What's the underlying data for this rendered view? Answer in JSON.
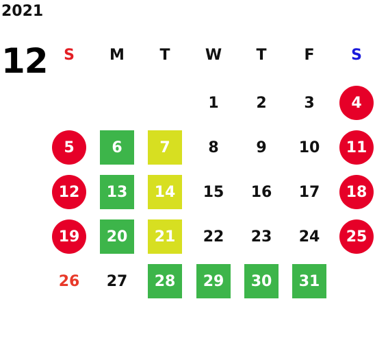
{
  "header": {
    "year": "2021",
    "month": "12"
  },
  "colors": {
    "sunday": "#e31e24",
    "saturday": "#1a1adb",
    "holiday_circle": "#e60028",
    "green_box": "#3db54a",
    "lime_box": "#d7df21"
  },
  "weekdays": [
    {
      "label": "S",
      "color": "#e31e24"
    },
    {
      "label": "M",
      "color": "#111111"
    },
    {
      "label": "T",
      "color": "#111111"
    },
    {
      "label": "W",
      "color": "#111111"
    },
    {
      "label": "T",
      "color": "#111111"
    },
    {
      "label": "F",
      "color": "#111111"
    },
    {
      "label": "S",
      "color": "#1a1adb"
    }
  ],
  "weeks": [
    [
      null,
      null,
      null,
      {
        "day": "1",
        "style": "plain"
      },
      {
        "day": "2",
        "style": "plain"
      },
      {
        "day": "3",
        "style": "plain"
      },
      {
        "day": "4",
        "style": "circle"
      }
    ],
    [
      {
        "day": "5",
        "style": "circle"
      },
      {
        "day": "6",
        "style": "green"
      },
      {
        "day": "7",
        "style": "lime"
      },
      {
        "day": "8",
        "style": "plain"
      },
      {
        "day": "9",
        "style": "plain"
      },
      {
        "day": "10",
        "style": "plain"
      },
      {
        "day": "11",
        "style": "circle"
      }
    ],
    [
      {
        "day": "12",
        "style": "circle"
      },
      {
        "day": "13",
        "style": "green"
      },
      {
        "day": "14",
        "style": "lime"
      },
      {
        "day": "15",
        "style": "plain"
      },
      {
        "day": "16",
        "style": "plain"
      },
      {
        "day": "17",
        "style": "plain"
      },
      {
        "day": "18",
        "style": "circle"
      }
    ],
    [
      {
        "day": "19",
        "style": "circle"
      },
      {
        "day": "20",
        "style": "green"
      },
      {
        "day": "21",
        "style": "lime"
      },
      {
        "day": "22",
        "style": "plain"
      },
      {
        "day": "23",
        "style": "plain"
      },
      {
        "day": "24",
        "style": "plain"
      },
      {
        "day": "25",
        "style": "circle"
      }
    ],
    [
      {
        "day": "26",
        "style": "sun-text"
      },
      {
        "day": "27",
        "style": "plain"
      },
      {
        "day": "28",
        "style": "green"
      },
      {
        "day": "29",
        "style": "green"
      },
      {
        "day": "30",
        "style": "green"
      },
      {
        "day": "31",
        "style": "green"
      },
      null
    ]
  ]
}
